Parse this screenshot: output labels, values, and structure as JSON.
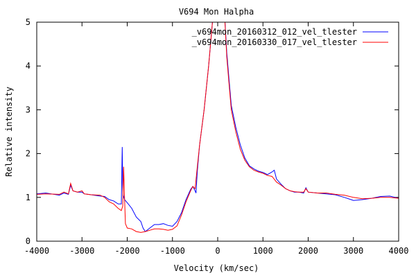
{
  "chart_data": {
    "type": "line",
    "title": "V694 Mon Halpha",
    "xlabel": "Velocity (km/sec)",
    "ylabel": "Relative intensity",
    "xlim": [
      -4000,
      4000
    ],
    "ylim": [
      0,
      5
    ],
    "xticks": [
      -4000,
      -3000,
      -2000,
      -1000,
      0,
      1000,
      2000,
      3000,
      4000
    ],
    "yticks": [
      0,
      1,
      2,
      3,
      4,
      5
    ],
    "grid": false,
    "legend_position": "top-right",
    "series": [
      {
        "name": "_v694mon_20160312_012_vel_tlester",
        "color": "#0000ff",
        "x": [
          -4000,
          -3800,
          -3500,
          -3400,
          -3300,
          -3250,
          -3200,
          -3100,
          -3000,
          -2950,
          -2800,
          -2600,
          -2500,
          -2400,
          -2300,
          -2200,
          -2130,
          -2110,
          -2100,
          -2090,
          -2060,
          -2000,
          -1900,
          -1800,
          -1700,
          -1650,
          -1600,
          -1500,
          -1400,
          -1300,
          -1200,
          -1100,
          -1000,
          -900,
          -800,
          -700,
          -600,
          -550,
          -500,
          -480,
          -450,
          -400,
          -300,
          -200,
          -100,
          150,
          200,
          250,
          300,
          400,
          500,
          600,
          700,
          800,
          900,
          1000,
          1100,
          1200,
          1250,
          1300,
          1400,
          1500,
          1600,
          1700,
          1800,
          1900,
          1950,
          2000,
          2200,
          2400,
          2600,
          2800,
          3000,
          3200,
          3400,
          3600,
          3800,
          4000
        ],
        "y": [
          1.08,
          1.1,
          1.05,
          1.1,
          1.07,
          1.28,
          1.15,
          1.12,
          1.12,
          1.08,
          1.06,
          1.03,
          1.02,
          0.95,
          0.92,
          0.85,
          0.85,
          2.15,
          1.3,
          1.05,
          0.95,
          0.88,
          0.75,
          0.55,
          0.45,
          0.3,
          0.22,
          0.3,
          0.38,
          0.38,
          0.4,
          0.36,
          0.34,
          0.45,
          0.65,
          0.95,
          1.18,
          1.25,
          1.15,
          1.1,
          1.6,
          2.2,
          3.0,
          4.0,
          5.2,
          5.2,
          4.3,
          3.7,
          3.1,
          2.6,
          2.2,
          1.9,
          1.72,
          1.65,
          1.6,
          1.57,
          1.52,
          1.58,
          1.62,
          1.42,
          1.3,
          1.2,
          1.15,
          1.12,
          1.12,
          1.1,
          1.22,
          1.12,
          1.1,
          1.08,
          1.06,
          1.0,
          0.93,
          0.95,
          0.98,
          1.02,
          1.03,
          0.98
        ]
      },
      {
        "name": "_v694mon_20160330_017_vel_tlester",
        "color": "#ff0000",
        "x": [
          -4000,
          -3800,
          -3500,
          -3400,
          -3300,
          -3250,
          -3200,
          -3100,
          -3000,
          -2950,
          -2800,
          -2600,
          -2500,
          -2400,
          -2300,
          -2200,
          -2130,
          -2100,
          -2080,
          -2060,
          -2040,
          -2000,
          -1900,
          -1800,
          -1700,
          -1600,
          -1500,
          -1400,
          -1300,
          -1200,
          -1100,
          -1000,
          -900,
          -800,
          -700,
          -600,
          -550,
          -500,
          -450,
          -400,
          -300,
          -200,
          -100,
          150,
          200,
          250,
          300,
          400,
          500,
          600,
          700,
          800,
          900,
          1000,
          1100,
          1200,
          1300,
          1400,
          1500,
          1600,
          1700,
          1800,
          1900,
          1950,
          2000,
          2200,
          2400,
          2600,
          2800,
          3000,
          3200,
          3400,
          3600,
          3800,
          4000
        ],
        "y": [
          1.07,
          1.08,
          1.07,
          1.12,
          1.08,
          1.32,
          1.15,
          1.12,
          1.15,
          1.08,
          1.06,
          1.05,
          1.0,
          0.9,
          0.85,
          0.75,
          0.7,
          0.8,
          1.7,
          1.0,
          0.4,
          0.3,
          0.28,
          0.22,
          0.2,
          0.22,
          0.25,
          0.28,
          0.28,
          0.27,
          0.25,
          0.27,
          0.35,
          0.6,
          0.9,
          1.15,
          1.25,
          1.2,
          1.7,
          2.2,
          3.0,
          4.0,
          5.2,
          5.2,
          4.2,
          3.6,
          3.0,
          2.5,
          2.1,
          1.85,
          1.7,
          1.62,
          1.58,
          1.55,
          1.5,
          1.48,
          1.35,
          1.28,
          1.2,
          1.15,
          1.13,
          1.12,
          1.12,
          1.2,
          1.12,
          1.1,
          1.1,
          1.07,
          1.05,
          1.0,
          0.97,
          0.98,
          1.0,
          1.0,
          0.98
        ]
      }
    ]
  }
}
